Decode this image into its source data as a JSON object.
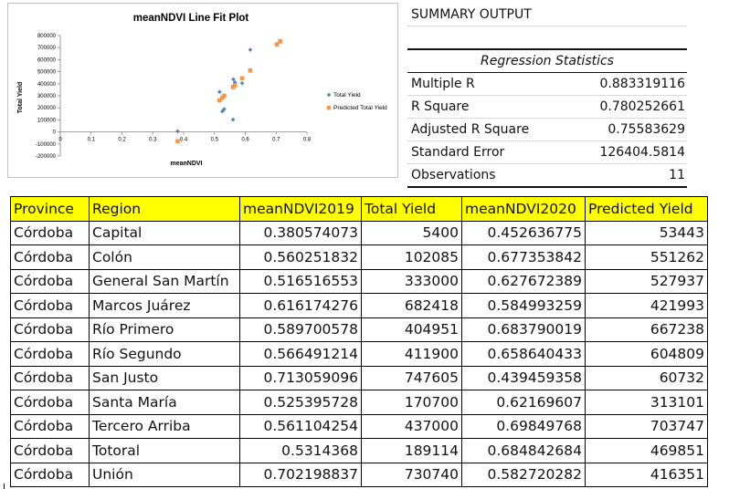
{
  "chart_data": {
    "type": "scatter",
    "title": "meanNDVI Line Fit  Plot",
    "xlabel": "meanNDVI",
    "ylabel": "Total Yield",
    "xlim": [
      0,
      0.8
    ],
    "ylim": [
      -200000,
      800000
    ],
    "xticks": [
      "0",
      "0.1",
      "0.2",
      "0.3",
      "0.4",
      "0.5",
      "0.6",
      "0.7",
      "0.8"
    ],
    "yticks": [
      "-200000",
      "-100000",
      "0",
      "100000",
      "200000",
      "300000",
      "400000",
      "500000",
      "600000",
      "700000",
      "800000"
    ],
    "legend_position": "right",
    "series": [
      {
        "name": "Total Yield",
        "marker": "diamond",
        "color": "#4f81bd",
        "x": [
          0.380574073,
          0.560251832,
          0.516516553,
          0.616174276,
          0.589700578,
          0.566491214,
          0.713059096,
          0.525395728,
          0.561104254,
          0.5314368,
          0.702198837
        ],
        "y": [
          5400,
          102085,
          333000,
          682418,
          404951,
          411900,
          747605,
          170700,
          437000,
          189114,
          730740
        ]
      },
      {
        "name": "Predicted Total Yield",
        "marker": "square",
        "color": "#f79646",
        "x": [
          0.380574073,
          0.560251832,
          0.516516553,
          0.616174276,
          0.589700578,
          0.566491214,
          0.713059096,
          0.525395728,
          0.561104254,
          0.5314368,
          0.702198837
        ],
        "y": [
          -77000,
          372000,
          262000,
          510000,
          445000,
          387000,
          753000,
          284000,
          374000,
          300000,
          726000
        ]
      }
    ]
  },
  "summary": {
    "title": "SUMMARY OUTPUT",
    "stats_header": "Regression Statistics",
    "rows": [
      {
        "label": "Multiple R",
        "value": "0.883319116"
      },
      {
        "label": "R Square",
        "value": "0.780252661"
      },
      {
        "label": "Adjusted R Square",
        "value": "0.75583629"
      },
      {
        "label": "Standard Error",
        "value": "126404.5814"
      },
      {
        "label": "Observations",
        "value": "11"
      }
    ]
  },
  "table": {
    "headers": [
      "Province",
      "Region",
      "meanNDVI2019",
      "Total Yield",
      "meanNDVI2020",
      "Predicted Yield"
    ],
    "rows": [
      [
        "Córdoba",
        "Capital",
        "0.380574073",
        "5400",
        "0.452636775",
        "53443"
      ],
      [
        "Córdoba",
        "Colón",
        "0.560251832",
        "102085",
        "0.677353842",
        "551262"
      ],
      [
        "Córdoba",
        "General San Martín",
        "0.516516553",
        "333000",
        "0.627672389",
        "527937"
      ],
      [
        "Córdoba",
        "Marcos Juárez",
        "0.616174276",
        "682418",
        "0.584993259",
        "421993"
      ],
      [
        "Córdoba",
        "Río Primero",
        "0.589700578",
        "404951",
        "0.683790019",
        "667238"
      ],
      [
        "Córdoba",
        "Río Segundo",
        "0.566491214",
        "411900",
        "0.658640433",
        "604809"
      ],
      [
        "Córdoba",
        "San Justo",
        "0.713059096",
        "747605",
        "0.439459358",
        "60732"
      ],
      [
        "Córdoba",
        "Santa María",
        "0.525395728",
        "170700",
        "0.62169607",
        "313101"
      ],
      [
        "Córdoba",
        "Tercero Arriba",
        "0.561104254",
        "437000",
        "0.69849768",
        "703747"
      ],
      [
        "Córdoba",
        "Totoral",
        "0.5314368",
        "189114",
        "0.684842684",
        "469851"
      ],
      [
        "Córdoba",
        "Unión",
        "0.702198837",
        "730740",
        "0.582720282",
        "416351"
      ]
    ]
  }
}
